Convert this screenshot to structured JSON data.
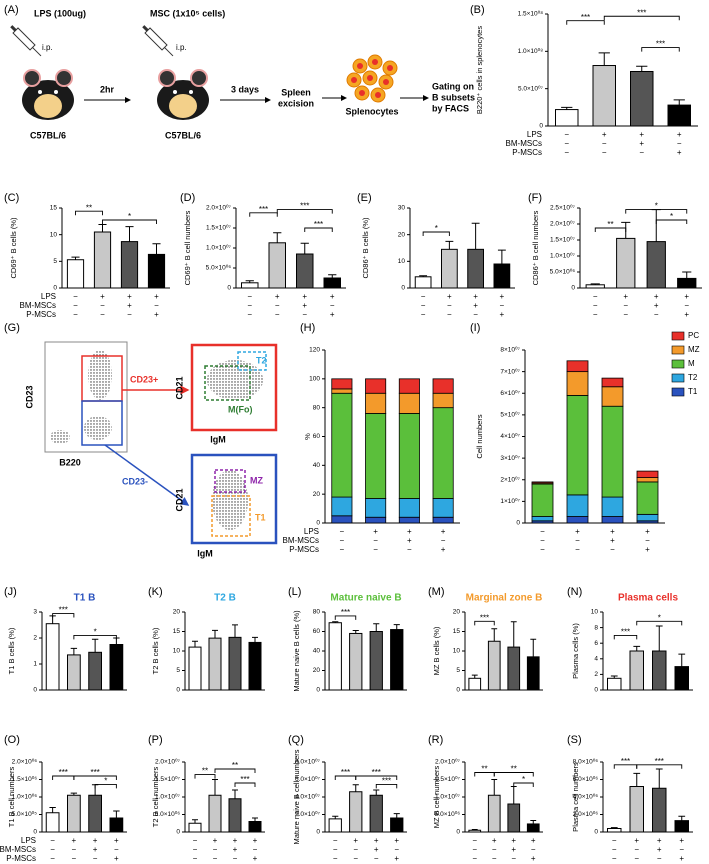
{
  "diagram_a": {
    "panel": "(A)",
    "lps": "LPS (100ug)",
    "ip1": "i.p.",
    "msc": "MSC (1x10⁵ cells)",
    "ip2": "i.p.",
    "interval": "2hr",
    "strain1": "C57BL/6",
    "strain2": "C57BL/6",
    "days": "3 days",
    "excision": [
      "Spleen",
      "excision"
    ],
    "splenocytes": "Splenocytes",
    "gating": [
      "Gating on",
      "B subsets",
      "by FACS"
    ]
  },
  "diagram_g": {
    "panel": "(G)",
    "y1": "CD23",
    "x1": "B220",
    "pos": "CD23+",
    "neg": "CD23-",
    "y2": "CD21",
    "x2": "IgM",
    "t2": "T2",
    "m": "M(Fo)",
    "y3": "CD21",
    "x3": "IgM",
    "mz": "MZ",
    "t1": "T1"
  },
  "chart_data": [
    {
      "type": "bar",
      "panel": "(B)",
      "ylabel": "B220⁺ cells in splenocytes",
      "ylim": [
        0,
        150000000
      ],
      "yticks": [
        0,
        {
          "value": 50000000,
          "label": "5.0×10⁰⁷"
        },
        {
          "value": 100000000,
          "label": "1.0×10⁰⁸"
        },
        {
          "value": 150000000,
          "label": "1.5×10⁰⁸"
        }
      ],
      "values": [
        22000000,
        81000000,
        73000000,
        28000000
      ],
      "errors": [
        3000000,
        17000000,
        7000000,
        7000000
      ],
      "colors": [
        "#ffffff",
        "#c8c8c8",
        "#555555",
        "#000000"
      ],
      "significance": [
        "***",
        "***",
        "***"
      ],
      "treatments": [
        {
          "label": "LPS",
          "signs": [
            "−",
            "+",
            "+",
            "+"
          ]
        },
        {
          "label": "BM-MSCs",
          "signs": [
            "−",
            "−",
            "+",
            "−"
          ]
        },
        {
          "label": "P-MSCs",
          "signs": [
            "−",
            "−",
            "−",
            "+"
          ]
        }
      ]
    },
    {
      "type": "bar",
      "panel": "(C)",
      "ylabel": "CD69⁺ B cells (%)",
      "ylim": [
        0,
        15
      ],
      "yticks": [
        0,
        5,
        10,
        15
      ],
      "values": [
        5.3,
        10.5,
        8.7,
        6.3
      ],
      "errors": [
        0.5,
        1.4,
        2.8,
        2.0
      ],
      "colors": [
        "#ffffff",
        "#c8c8c8",
        "#555555",
        "#000000"
      ],
      "significance": [
        "**",
        "*"
      ],
      "treatments": [
        {
          "label": "LPS",
          "signs": [
            "−",
            "+",
            "+",
            "+"
          ]
        },
        {
          "label": "BM-MSCs",
          "signs": [
            "−",
            "−",
            "+",
            "−"
          ]
        },
        {
          "label": "P-MSCs",
          "signs": [
            "−",
            "−",
            "−",
            "+"
          ]
        }
      ]
    },
    {
      "type": "bar",
      "panel": "(D)",
      "ylabel": "CD69⁺ B cell numbers",
      "ylim": [
        0,
        20000000
      ],
      "yticks": [
        0,
        {
          "value": 5000000,
          "label": "5.0×10⁰⁶"
        },
        {
          "value": 10000000,
          "label": "1.0×10⁰⁷"
        },
        {
          "value": 15000000,
          "label": "1.5×10⁰⁷"
        },
        {
          "value": 20000000,
          "label": "2.0×10⁰⁷"
        }
      ],
      "values": [
        1300000,
        11300000,
        8500000,
        2500000
      ],
      "errors": [
        500000,
        2500000,
        2700000,
        800000
      ],
      "colors": [
        "#ffffff",
        "#c8c8c8",
        "#555555",
        "#000000"
      ],
      "significance": [
        "***",
        "***",
        "***"
      ],
      "treatments": [
        {
          "signs": [
            "−",
            "+",
            "+",
            "+"
          ]
        },
        {
          "signs": [
            "−",
            "−",
            "+",
            "−"
          ]
        },
        {
          "signs": [
            "−",
            "−",
            "−",
            "+"
          ]
        }
      ]
    },
    {
      "type": "bar",
      "panel": "(E)",
      "ylabel": "CD86⁺ B cells (%)",
      "ylim": [
        0,
        30
      ],
      "yticks": [
        0,
        10,
        20,
        30
      ],
      "values": [
        4.2,
        14.5,
        14.5,
        9
      ],
      "errors": [
        0.4,
        3,
        9.8,
        5.2
      ],
      "colors": [
        "#ffffff",
        "#c8c8c8",
        "#555555",
        "#000000"
      ],
      "significance": [
        "*"
      ],
      "treatments": [
        {
          "signs": [
            "−",
            "+",
            "+",
            "+"
          ]
        },
        {
          "signs": [
            "−",
            "−",
            "+",
            "−"
          ]
        },
        {
          "signs": [
            "−",
            "−",
            "−",
            "+"
          ]
        }
      ]
    },
    {
      "type": "bar",
      "panel": "(F)",
      "ylabel": "CD86⁺ B cell numbers",
      "ylim": [
        0,
        25000000
      ],
      "yticks": [
        0,
        {
          "value": 5000000,
          "label": "5.0×10⁰⁶"
        },
        {
          "value": 10000000,
          "label": "1.0×10⁰⁷"
        },
        {
          "value": 15000000,
          "label": "1.5×10⁰⁷"
        },
        {
          "value": 20000000,
          "label": "2.0×10⁰⁷"
        },
        {
          "value": 25000000,
          "label": "2.5×10⁰⁷"
        }
      ],
      "values": [
        1000000,
        15500000,
        14500000,
        3000000
      ],
      "errors": [
        300000,
        5000000,
        10000000,
        2000000
      ],
      "colors": [
        "#ffffff",
        "#c8c8c8",
        "#555555",
        "#000000"
      ],
      "significance": [
        "**",
        "*",
        "*"
      ],
      "treatments": [
        {
          "signs": [
            "−",
            "+",
            "+",
            "+"
          ]
        },
        {
          "signs": [
            "−",
            "−",
            "+",
            "−"
          ]
        },
        {
          "signs": [
            "−",
            "−",
            "−",
            "+"
          ]
        }
      ]
    },
    {
      "type": "stacked_bar",
      "panel": "(H)",
      "ylabel": "%",
      "ylim": [
        0,
        120
      ],
      "yticks": [
        0,
        20,
        40,
        60,
        80,
        100,
        120
      ],
      "series": [
        {
          "name": "T1",
          "color": "#2a52be",
          "values": [
            5,
            4,
            4,
            4
          ]
        },
        {
          "name": "T2",
          "color": "#2ea7e0",
          "values": [
            13,
            13,
            13,
            13
          ]
        },
        {
          "name": "M",
          "color": "#5bbf3b",
          "values": [
            72,
            59,
            59,
            63
          ]
        },
        {
          "name": "MZ",
          "color": "#f39a2b",
          "values": [
            3,
            14,
            14,
            10
          ]
        },
        {
          "name": "PC",
          "color": "#e8302a",
          "values": [
            7,
            10,
            10,
            10
          ]
        }
      ],
      "treatments": [
        {
          "label": "LPS",
          "signs": [
            "−",
            "+",
            "+",
            "+"
          ]
        },
        {
          "label": "BM-MSCs",
          "signs": [
            "−",
            "−",
            "+",
            "−"
          ]
        },
        {
          "label": "P-MSCs",
          "signs": [
            "−",
            "−",
            "−",
            "+"
          ]
        }
      ]
    },
    {
      "type": "stacked_bar",
      "panel": "(I)",
      "ylabel": "Cell numbers",
      "ylim": [
        0,
        80000000
      ],
      "legend": true,
      "yticks": [
        0,
        {
          "value": 10000000,
          "label": "1×10⁰⁷"
        },
        {
          "value": 20000000,
          "label": "2×10⁰⁷"
        },
        {
          "value": 30000000,
          "label": "3×10⁰⁷"
        },
        {
          "value": 40000000,
          "label": "4×10⁰⁷"
        },
        {
          "value": 50000000,
          "label": "5×10⁰⁷"
        },
        {
          "value": 60000000,
          "label": "6×10⁰⁷"
        },
        {
          "value": 70000000,
          "label": "7×10⁰⁷"
        },
        {
          "value": 80000000,
          "label": "8×10⁰⁷"
        }
      ],
      "series": [
        {
          "name": "T1",
          "color": "#2a52be",
          "values": [
            1000000,
            3000000,
            3000000,
            1000000
          ]
        },
        {
          "name": "T2",
          "color": "#2ea7e0",
          "values": [
            2000000,
            10000000,
            9000000,
            3000000
          ]
        },
        {
          "name": "M",
          "color": "#5bbf3b",
          "values": [
            15000000,
            46000000,
            42000000,
            15000000
          ]
        },
        {
          "name": "MZ",
          "color": "#f39a2b",
          "values": [
            500000,
            11000000,
            9000000,
            2000000
          ]
        },
        {
          "name": "PC",
          "color": "#e8302a",
          "values": [
            500000,
            5000000,
            4000000,
            3000000
          ]
        }
      ],
      "treatments": [
        {
          "signs": [
            "−",
            "+",
            "+",
            "+"
          ]
        },
        {
          "signs": [
            "−",
            "−",
            "+",
            "−"
          ]
        },
        {
          "signs": [
            "−",
            "−",
            "−",
            "+"
          ]
        }
      ]
    },
    {
      "type": "bar",
      "panel": "(J)",
      "title": "T1 B",
      "title_color": "#2a52be",
      "ylabel": "T1 B cells (%)",
      "ylim": [
        0,
        3
      ],
      "yticks": [
        0,
        1,
        2,
        3
      ],
      "values": [
        2.55,
        1.35,
        1.45,
        1.75
      ],
      "errors": [
        0.3,
        0.25,
        0.5,
        0.25
      ],
      "colors": [
        "#ffffff",
        "#c8c8c8",
        "#555555",
        "#000000"
      ],
      "significance": [
        "***",
        "*"
      ]
    },
    {
      "type": "bar",
      "panel": "(K)",
      "title": "T2 B",
      "title_color": "#2ea7e0",
      "ylabel": "T2 B cells (%)",
      "ylim": [
        0,
        20
      ],
      "yticks": [
        0,
        5,
        10,
        15,
        20
      ],
      "values": [
        11,
        13.3,
        13.5,
        12.2
      ],
      "errors": [
        1.5,
        2,
        3.2,
        1.3
      ],
      "colors": [
        "#ffffff",
        "#c8c8c8",
        "#555555",
        "#000000"
      ]
    },
    {
      "type": "bar",
      "panel": "(L)",
      "title": "Mature naive B",
      "title_color": "#5bbf3b",
      "ylabel": "Mature naive B cells (%)",
      "ylim": [
        0,
        80
      ],
      "yticks": [
        0,
        20,
        40,
        60,
        80
      ],
      "values": [
        69,
        58,
        60,
        62
      ],
      "errors": [
        1,
        3,
        8,
        5
      ],
      "colors": [
        "#ffffff",
        "#c8c8c8",
        "#555555",
        "#000000"
      ],
      "significance": [
        "***"
      ]
    },
    {
      "type": "bar",
      "panel": "(M)",
      "title": "Marginal zone B",
      "title_color": "#f39a2b",
      "ylabel": "MZ B cells (%)",
      "ylim": [
        0,
        20
      ],
      "yticks": [
        0,
        5,
        10,
        15,
        20
      ],
      "values": [
        3,
        12.5,
        11,
        8.5
      ],
      "errors": [
        0.8,
        3.2,
        6.5,
        4.5
      ],
      "colors": [
        "#ffffff",
        "#c8c8c8",
        "#555555",
        "#000000"
      ],
      "significance": [
        "***"
      ]
    },
    {
      "type": "bar",
      "panel": "(N)",
      "title": "Plasma cells",
      "title_color": "#e8302a",
      "ylabel": "Plasma cells (%)",
      "ylim": [
        0,
        10
      ],
      "yticks": [
        0,
        2,
        4,
        6,
        8,
        10
      ],
      "values": [
        1.5,
        5,
        5,
        3
      ],
      "errors": [
        0.3,
        0.6,
        3.2,
        1.6
      ],
      "colors": [
        "#ffffff",
        "#c8c8c8",
        "#555555",
        "#000000"
      ],
      "significance": [
        "***",
        "*"
      ]
    },
    {
      "type": "bar",
      "panel": "(O)",
      "ylabel": "T1 B cell numbers",
      "ylim": [
        0,
        2000000
      ],
      "yticks": [
        0,
        {
          "value": 500000,
          "label": "5.0×10⁰⁵"
        },
        {
          "value": 1000000,
          "label": "1.0×10⁰⁶"
        },
        {
          "value": 1500000,
          "label": "1.5×10⁰⁶"
        },
        {
          "value": 2000000,
          "label": "2.0×10⁰⁶"
        }
      ],
      "values": [
        550000,
        1050000,
        1050000,
        400000
      ],
      "errors": [
        150000,
        60000,
        300000,
        200000
      ],
      "colors": [
        "#ffffff",
        "#c8c8c8",
        "#555555",
        "#000000"
      ],
      "significance": [
        "***",
        "***",
        "*"
      ],
      "treatments": [
        {
          "label": "LPS",
          "signs": [
            "−",
            "+",
            "+",
            "+"
          ]
        },
        {
          "label": "BM-MSCs",
          "signs": [
            "−",
            "−",
            "+",
            "−"
          ]
        },
        {
          "label": "P-MSCs",
          "signs": [
            "−",
            "−",
            "−",
            "+"
          ]
        }
      ]
    },
    {
      "type": "bar",
      "panel": "(P)",
      "ylabel": "T2 B cell numbers",
      "ylim": [
        0,
        20000000
      ],
      "yticks": [
        0,
        {
          "value": 5000000,
          "label": "5.0×10⁰⁶"
        },
        {
          "value": 10000000,
          "label": "1.0×10⁰⁷"
        },
        {
          "value": 15000000,
          "label": "1.5×10⁰⁷"
        },
        {
          "value": 20000000,
          "label": "2.0×10⁰⁷"
        }
      ],
      "values": [
        2500000,
        10500000,
        9500000,
        3000000
      ],
      "errors": [
        1000000,
        4500000,
        2500000,
        1000000
      ],
      "colors": [
        "#ffffff",
        "#c8c8c8",
        "#555555",
        "#000000"
      ],
      "significance": [
        "**",
        "**",
        "***"
      ],
      "treatments": [
        {
          "signs": [
            "−",
            "+",
            "+",
            "+"
          ]
        },
        {
          "signs": [
            "−",
            "−",
            "+",
            "−"
          ]
        },
        {
          "signs": [
            "−",
            "−",
            "−",
            "+"
          ]
        }
      ]
    },
    {
      "type": "bar",
      "panel": "(Q)",
      "ylabel": "Mature naive B cell numbers",
      "ylim": [
        0,
        80000000
      ],
      "yticks": [
        0,
        {
          "value": 20000000,
          "label": "2.0×10⁰⁷"
        },
        {
          "value": 40000000,
          "label": "4.0×10⁰⁷"
        },
        {
          "value": 60000000,
          "label": "6.0×10⁰⁷"
        },
        {
          "value": 80000000,
          "label": "8.0×10⁰⁷"
        }
      ],
      "values": [
        15000000,
        46000000,
        42000000,
        16000000
      ],
      "errors": [
        3000000,
        8000000,
        6000000,
        5000000
      ],
      "colors": [
        "#ffffff",
        "#c8c8c8",
        "#555555",
        "#000000"
      ],
      "significance": [
        "***",
        "***",
        "***"
      ],
      "treatments": [
        {
          "signs": [
            "−",
            "+",
            "+",
            "+"
          ]
        },
        {
          "signs": [
            "−",
            "−",
            "+",
            "−"
          ]
        },
        {
          "signs": [
            "−",
            "−",
            "−",
            "+"
          ]
        }
      ]
    },
    {
      "type": "bar",
      "panel": "(R)",
      "ylabel": "MZ B cell numbers",
      "ylim": [
        0,
        20000000
      ],
      "yticks": [
        0,
        {
          "value": 5000000,
          "label": "5.0×10⁰⁶"
        },
        {
          "value": 10000000,
          "label": "1.0×10⁰⁷"
        },
        {
          "value": 15000000,
          "label": "1.5×10⁰⁷"
        },
        {
          "value": 20000000,
          "label": "2.0×10⁰⁷"
        }
      ],
      "values": [
        500000,
        10500000,
        8000000,
        2300000
      ],
      "errors": [
        200000,
        4500000,
        5000000,
        1000000
      ],
      "colors": [
        "#ffffff",
        "#c8c8c8",
        "#555555",
        "#000000"
      ],
      "significance": [
        "**",
        "**",
        "*"
      ],
      "treatments": [
        {
          "signs": [
            "−",
            "+",
            "+",
            "+"
          ]
        },
        {
          "signs": [
            "−",
            "−",
            "+",
            "−"
          ]
        },
        {
          "signs": [
            "−",
            "−",
            "−",
            "+"
          ]
        }
      ]
    },
    {
      "type": "bar",
      "panel": "(S)",
      "ylabel": "Plasma cell numbers",
      "ylim": [
        0,
        8000000
      ],
      "yticks": [
        0,
        {
          "value": 2000000,
          "label": "2.0×10⁰⁶"
        },
        {
          "value": 4000000,
          "label": "4.0×10⁰⁶"
        },
        {
          "value": 6000000,
          "label": "6.0×10⁰⁶"
        },
        {
          "value": 8000000,
          "label": "8.0×10⁰⁶"
        }
      ],
      "values": [
        400000,
        5200000,
        5000000,
        1300000
      ],
      "errors": [
        100000,
        1500000,
        2200000,
        500000
      ],
      "colors": [
        "#ffffff",
        "#c8c8c8",
        "#555555",
        "#000000"
      ],
      "significance": [
        "***",
        "***"
      ],
      "treatments": [
        {
          "signs": [
            "−",
            "+",
            "+",
            "+"
          ]
        },
        {
          "signs": [
            "−",
            "−",
            "+",
            "−"
          ]
        },
        {
          "signs": [
            "−",
            "−",
            "−",
            "+"
          ]
        }
      ]
    }
  ]
}
